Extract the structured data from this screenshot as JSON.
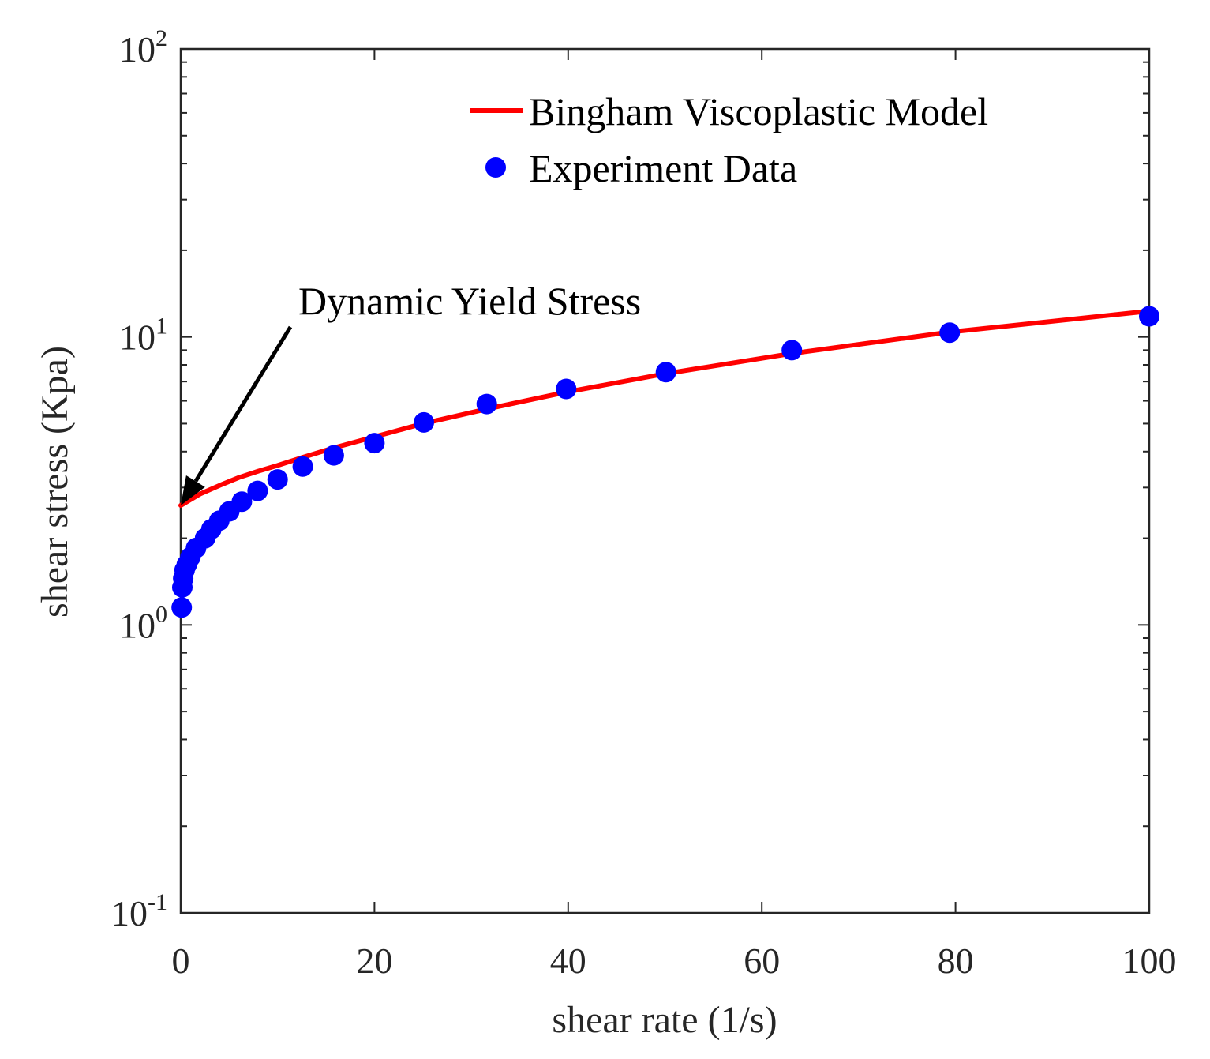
{
  "chart_data": {
    "type": "line",
    "xlabel": "shear rate (1/s)",
    "ylabel": "shear stress (Kpa)",
    "xlim": [
      0,
      100
    ],
    "ylim": [
      0.1,
      100
    ],
    "yscale": "log",
    "grid": false,
    "legend_position": "top-right",
    "x_ticks": [
      "0",
      "20",
      "40",
      "60",
      "80",
      "100"
    ],
    "y_ticks": [
      {
        "base": "10",
        "exp": "-1",
        "value": 0.1
      },
      {
        "base": "10",
        "exp": "0",
        "value": 1
      },
      {
        "base": "10",
        "exp": "1",
        "value": 10
      },
      {
        "base": "10",
        "exp": "2",
        "value": 100
      }
    ],
    "series": [
      {
        "name": "Bingham Viscoplastic Model",
        "kind": "line",
        "color": "#ff0000",
        "x": [
          0,
          2,
          4,
          6,
          8,
          10,
          12.6,
          15.8,
          20,
          25,
          31.6,
          40,
          50,
          63,
          79.4,
          100
        ],
        "y": [
          2.6,
          2.85,
          3.05,
          3.25,
          3.42,
          3.58,
          3.82,
          4.12,
          4.5,
          5.0,
          5.62,
          6.45,
          7.45,
          8.75,
          10.4,
          12.3
        ]
      },
      {
        "name": "Experiment Data",
        "kind": "scatter",
        "color": "#0000ff",
        "x": [
          0.1,
          0.16,
          0.25,
          0.4,
          0.63,
          1.0,
          1.58,
          2.51,
          3.16,
          3.98,
          5.01,
          6.31,
          7.94,
          10,
          12.6,
          15.8,
          20,
          25.1,
          31.6,
          39.8,
          50.1,
          63.1,
          79.4,
          100
        ],
        "y": [
          1.15,
          1.35,
          1.45,
          1.55,
          1.62,
          1.72,
          1.85,
          2.0,
          2.15,
          2.3,
          2.48,
          2.68,
          2.92,
          3.2,
          3.55,
          3.88,
          4.28,
          5.05,
          5.85,
          6.6,
          7.55,
          9.0,
          10.35,
          11.8
        ]
      }
    ],
    "annotations": [
      {
        "text": "Dynamic Yield Stress",
        "arrow_to": {
          "x": 0,
          "y": 2.6
        }
      }
    ]
  }
}
